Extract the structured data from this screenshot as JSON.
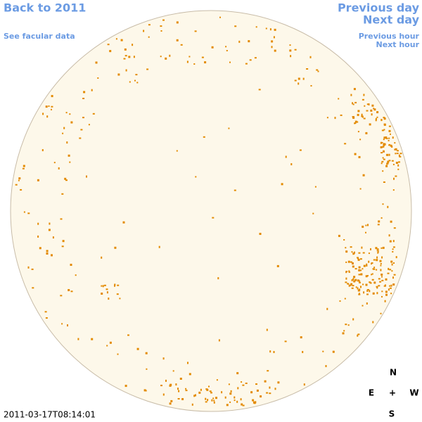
{
  "header": {
    "back_link": "Back to 2011",
    "facular_link": "See facular data",
    "previous_day": "Previous day",
    "next_day": "Next day",
    "previous_hour": "Previous hour",
    "next_hour": "Next hour"
  },
  "footer": {
    "timestamp": "2011-03-17T08:14:01"
  },
  "compass": {
    "north": "N",
    "east": "E",
    "center": "+",
    "west": "W",
    "south": "S"
  }
}
